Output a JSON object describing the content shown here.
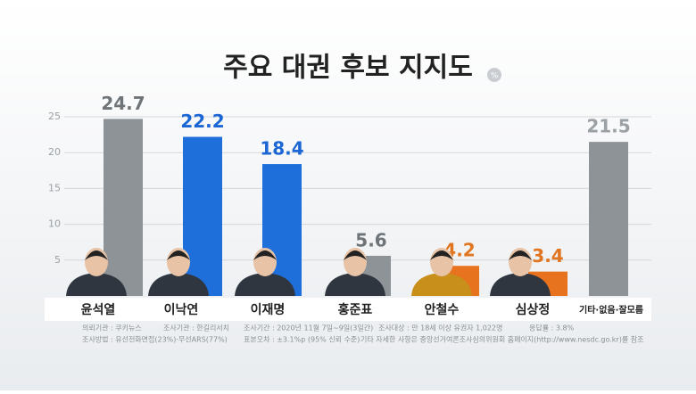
{
  "chart_data": {
    "type": "bar",
    "title": "주요 대권 후보 지지도",
    "unit": "%",
    "categories": [
      "윤석열",
      "이낙연",
      "이재명",
      "홍준표",
      "안철수",
      "심상정",
      "기타·없음·잘모름"
    ],
    "values": [
      24.7,
      22.2,
      18.4,
      5.6,
      4.2,
      3.4,
      21.5
    ],
    "colors": [
      "#8d9397",
      "#1f6fdb",
      "#1f6fdb",
      "#8d9397",
      "#e8731f",
      "#e8731f",
      "#8d9397"
    ],
    "label_colors": [
      "#6e7478",
      "#1a66d4",
      "#1a66d4",
      "#6e7478",
      "#e27520",
      "#e27520",
      "#9aa0a4"
    ],
    "ylim": [
      0,
      25
    ],
    "yticks": [
      5,
      10,
      15,
      20,
      25
    ],
    "grid": true,
    "notes": [
      "의뢰기관 : 쿠키뉴스",
      "조사방법 : 유선전화면접(23%)·무선ARS(77%)",
      "조사기관 : 한길리서치",
      "조사기간 : 2020년 11월 7일~9일(3일간)",
      "표본오차 : ±3.1%p (95% 신뢰 수준)",
      "조사대상 : 만 18세 이상 유권자 1,022명",
      "응답률 : 3.8%",
      "기타 자세한 사항은 중앙선거여론조사심의위원회 홈페이지(http://www.nesdc.go.kr)를 참조"
    ]
  }
}
